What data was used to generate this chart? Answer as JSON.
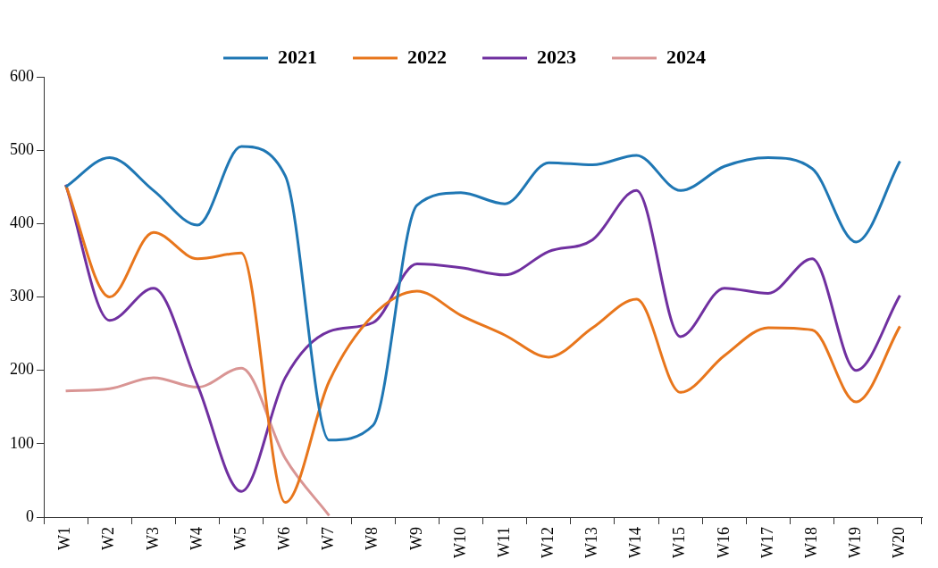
{
  "chart_data": {
    "type": "line",
    "categories": [
      "W1",
      "W2",
      "W3",
      "W4",
      "W5",
      "W6",
      "W7",
      "W8",
      "W9",
      "W10",
      "W11",
      "W12",
      "W13",
      "W14",
      "W15",
      "W16",
      "W17",
      "W18",
      "W19",
      "W20"
    ],
    "series": [
      {
        "name": "2021",
        "color": "#1f77b4",
        "values": [
          450,
          490,
          445,
          398,
          505,
          465,
          105,
          125,
          425,
          442,
          427,
          483,
          480,
          493,
          445,
          478,
          490,
          475,
          375,
          485
        ]
      },
      {
        "name": "2022",
        "color": "#e8761c",
        "values": [
          452,
          300,
          388,
          352,
          360,
          20,
          185,
          275,
          308,
          275,
          248,
          218,
          258,
          297,
          170,
          220,
          258,
          255,
          157,
          260
        ]
      },
      {
        "name": "2023",
        "color": "#7030a0",
        "values": [
          453,
          268,
          312,
          180,
          35,
          190,
          253,
          265,
          345,
          340,
          330,
          362,
          378,
          445,
          246,
          312,
          305,
          352,
          200,
          302
        ]
      },
      {
        "name": "2024",
        "color": "#d99594",
        "values": [
          172,
          175,
          190,
          177,
          203,
          80,
          2,
          null,
          null,
          null,
          null,
          null,
          null,
          null,
          null,
          null,
          null,
          null,
          null,
          null
        ]
      }
    ],
    "ylim": [
      0,
      600
    ],
    "yticks": [
      0,
      100,
      200,
      300,
      400,
      500,
      600
    ],
    "grid": false,
    "legend": "top",
    "marker": "none",
    "line_style": "solid"
  }
}
